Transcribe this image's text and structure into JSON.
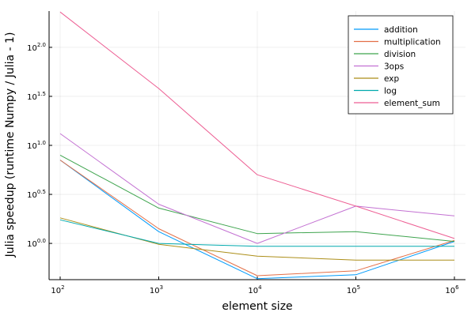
{
  "chart_data": {
    "type": "line",
    "xlabel": "element size",
    "ylabel": "Julia speedup (runtime Numpy / Julia - 1)",
    "x_scale": "log10",
    "y_scale": "log10",
    "xlim": [
      100,
      1000000
    ],
    "ylim_log10": [
      -0.37,
      2.37
    ],
    "grid": true,
    "legend_position": "top-right",
    "x": [
      100,
      1000,
      10000,
      100000,
      1000000
    ],
    "x_ticks": [
      {
        "base": "10",
        "exp": "2",
        "value": 100
      },
      {
        "base": "10",
        "exp": "3",
        "value": 1000
      },
      {
        "base": "10",
        "exp": "4",
        "value": 10000
      },
      {
        "base": "10",
        "exp": "5",
        "value": 100000
      },
      {
        "base": "10",
        "exp": "6",
        "value": 1000000
      }
    ],
    "y_ticks": [
      {
        "base": "10",
        "exp": "0.0",
        "value": 0.0
      },
      {
        "base": "10",
        "exp": "0.5",
        "value": 0.5
      },
      {
        "base": "10",
        "exp": "1.0",
        "value": 1.0
      },
      {
        "base": "10",
        "exp": "1.5",
        "value": 1.5
      },
      {
        "base": "10",
        "exp": "2.0",
        "value": 2.0
      }
    ],
    "series_values_are_log10": true,
    "series": [
      {
        "name": "addition",
        "color": "#009AFA",
        "values": [
          0.85,
          0.12,
          -0.36,
          -0.32,
          0.02
        ]
      },
      {
        "name": "multiplication",
        "color": "#E36F47",
        "values": [
          0.85,
          0.15,
          -0.33,
          -0.28,
          0.03
        ]
      },
      {
        "name": "division",
        "color": "#3EA44E",
        "values": [
          0.9,
          0.36,
          0.1,
          0.12,
          0.02
        ]
      },
      {
        "name": "3ops",
        "color": "#C371D2",
        "values": [
          1.12,
          0.4,
          0.0,
          0.38,
          0.28
        ]
      },
      {
        "name": "exp",
        "color": "#AC8E18",
        "values": [
          0.26,
          -0.01,
          -0.13,
          -0.17,
          -0.17
        ]
      },
      {
        "name": "log",
        "color": "#00A9AD",
        "values": [
          0.24,
          0.0,
          -0.03,
          -0.03,
          -0.03
        ]
      },
      {
        "name": "element_sum",
        "color": "#ED5E93",
        "values": [
          2.36,
          1.58,
          0.7,
          0.38,
          0.05
        ]
      }
    ]
  }
}
